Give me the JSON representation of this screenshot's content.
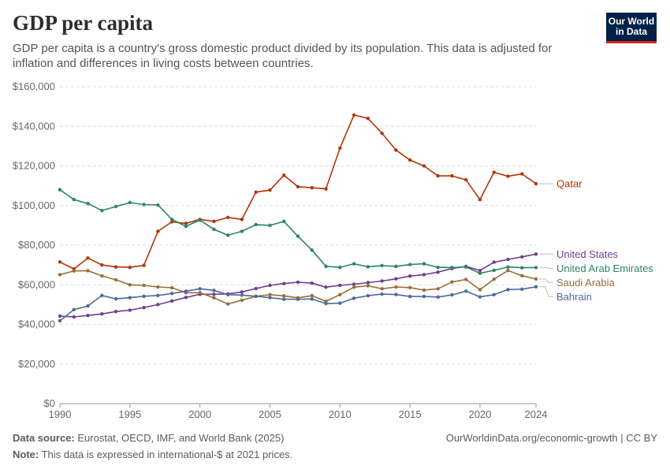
{
  "header": {
    "title": "GDP per capita",
    "subtitle": "GDP per capita is a country's gross domestic product divided by its population. This data is adjusted for inflation and differences in living costs between countries."
  },
  "logo": {
    "line1": "Our World",
    "line2": "in Data"
  },
  "footer": {
    "source_label": "Data source:",
    "source_text": "Eurostat, OECD, IMF, and World Bank (2025)",
    "note_label": "Note:",
    "note_text": "This data is expressed in international-$ at 2021 prices.",
    "url": "OurWorldinData.org/economic-growth | CC BY"
  },
  "colors": {
    "accent": "#ce261e",
    "logo_bg": "#002147"
  },
  "chart_data": {
    "type": "line",
    "x": [
      1990,
      1991,
      1992,
      1993,
      1994,
      1995,
      1996,
      1997,
      1998,
      1999,
      2000,
      2001,
      2002,
      2003,
      2004,
      2005,
      2006,
      2007,
      2008,
      2009,
      2010,
      2011,
      2012,
      2013,
      2014,
      2015,
      2016,
      2017,
      2018,
      2019,
      2020,
      2021,
      2022,
      2023,
      2024
    ],
    "xlim": [
      1990,
      2024
    ],
    "ylim": [
      0,
      160000
    ],
    "yticks": [
      0,
      20000,
      40000,
      60000,
      80000,
      100000,
      120000,
      140000,
      160000
    ],
    "ytick_labels": [
      "$0",
      "$20,000",
      "$40,000",
      "$60,000",
      "$80,000",
      "$100,000",
      "$120,000",
      "$140,000",
      "$160,000"
    ],
    "xticks": [
      1990,
      1995,
      2000,
      2005,
      2010,
      2015,
      2020,
      2024
    ],
    "xtick_labels": [
      "1990",
      "1995",
      "2000",
      "2005",
      "2010",
      "2015",
      "2020",
      "2024"
    ],
    "grid": true,
    "legend": "right-end labels",
    "series": [
      {
        "name": "Qatar",
        "color": "#b13507",
        "values": [
          71500,
          68000,
          73500,
          70000,
          69000,
          68800,
          69800,
          87000,
          91800,
          91000,
          93000,
          92000,
          94000,
          93000,
          106800,
          107800,
          115300,
          109500,
          109000,
          108400,
          129000,
          145700,
          144000,
          136500,
          128000,
          123000,
          120000,
          115000,
          115000,
          113000,
          103000,
          116800,
          114800,
          116000,
          111000
        ]
      },
      {
        "name": "United States",
        "color": "#6d3e91",
        "values": [
          44200,
          43800,
          44500,
          45300,
          46500,
          47200,
          48500,
          50000,
          51800,
          53600,
          55200,
          55200,
          55400,
          56400,
          58100,
          59700,
          60600,
          61300,
          60800,
          58800,
          59700,
          60300,
          61100,
          61900,
          63000,
          64400,
          65100,
          66400,
          68200,
          69300,
          67200,
          71400,
          72800,
          74100,
          75500
        ]
      },
      {
        "name": "United Arab Emirates",
        "color": "#2c8465",
        "values": [
          108000,
          103000,
          101000,
          97500,
          99500,
          101500,
          100500,
          100300,
          93000,
          89500,
          92700,
          88000,
          85000,
          87000,
          90400,
          90000,
          92000,
          84500,
          77500,
          69300,
          68800,
          70600,
          69100,
          69700,
          69300,
          70200,
          70600,
          68800,
          68700,
          69000,
          65800,
          67300,
          69000,
          68600,
          68700
        ]
      },
      {
        "name": "Saudi Arabia",
        "color": "#996d39",
        "values": [
          65100,
          67000,
          67100,
          64500,
          62500,
          60000,
          59700,
          58900,
          58500,
          56000,
          56000,
          53400,
          50300,
          52200,
          54200,
          55000,
          54400,
          53400,
          54500,
          51700,
          55000,
          58800,
          59500,
          58000,
          58900,
          58600,
          57300,
          58000,
          61400,
          62700,
          57500,
          62800,
          67200,
          64600,
          62900
        ]
      },
      {
        "name": "Bahrain",
        "color": "#4c6a9c",
        "values": [
          41800,
          47500,
          49300,
          54600,
          52900,
          53500,
          54200,
          54600,
          55600,
          56800,
          58000,
          57200,
          55000,
          54800,
          54200,
          53500,
          52700,
          52700,
          52800,
          50500,
          50700,
          53200,
          54500,
          55300,
          55100,
          54100,
          54100,
          53800,
          54900,
          56800,
          53900,
          55000,
          57600,
          57800,
          59000
        ]
      }
    ]
  }
}
